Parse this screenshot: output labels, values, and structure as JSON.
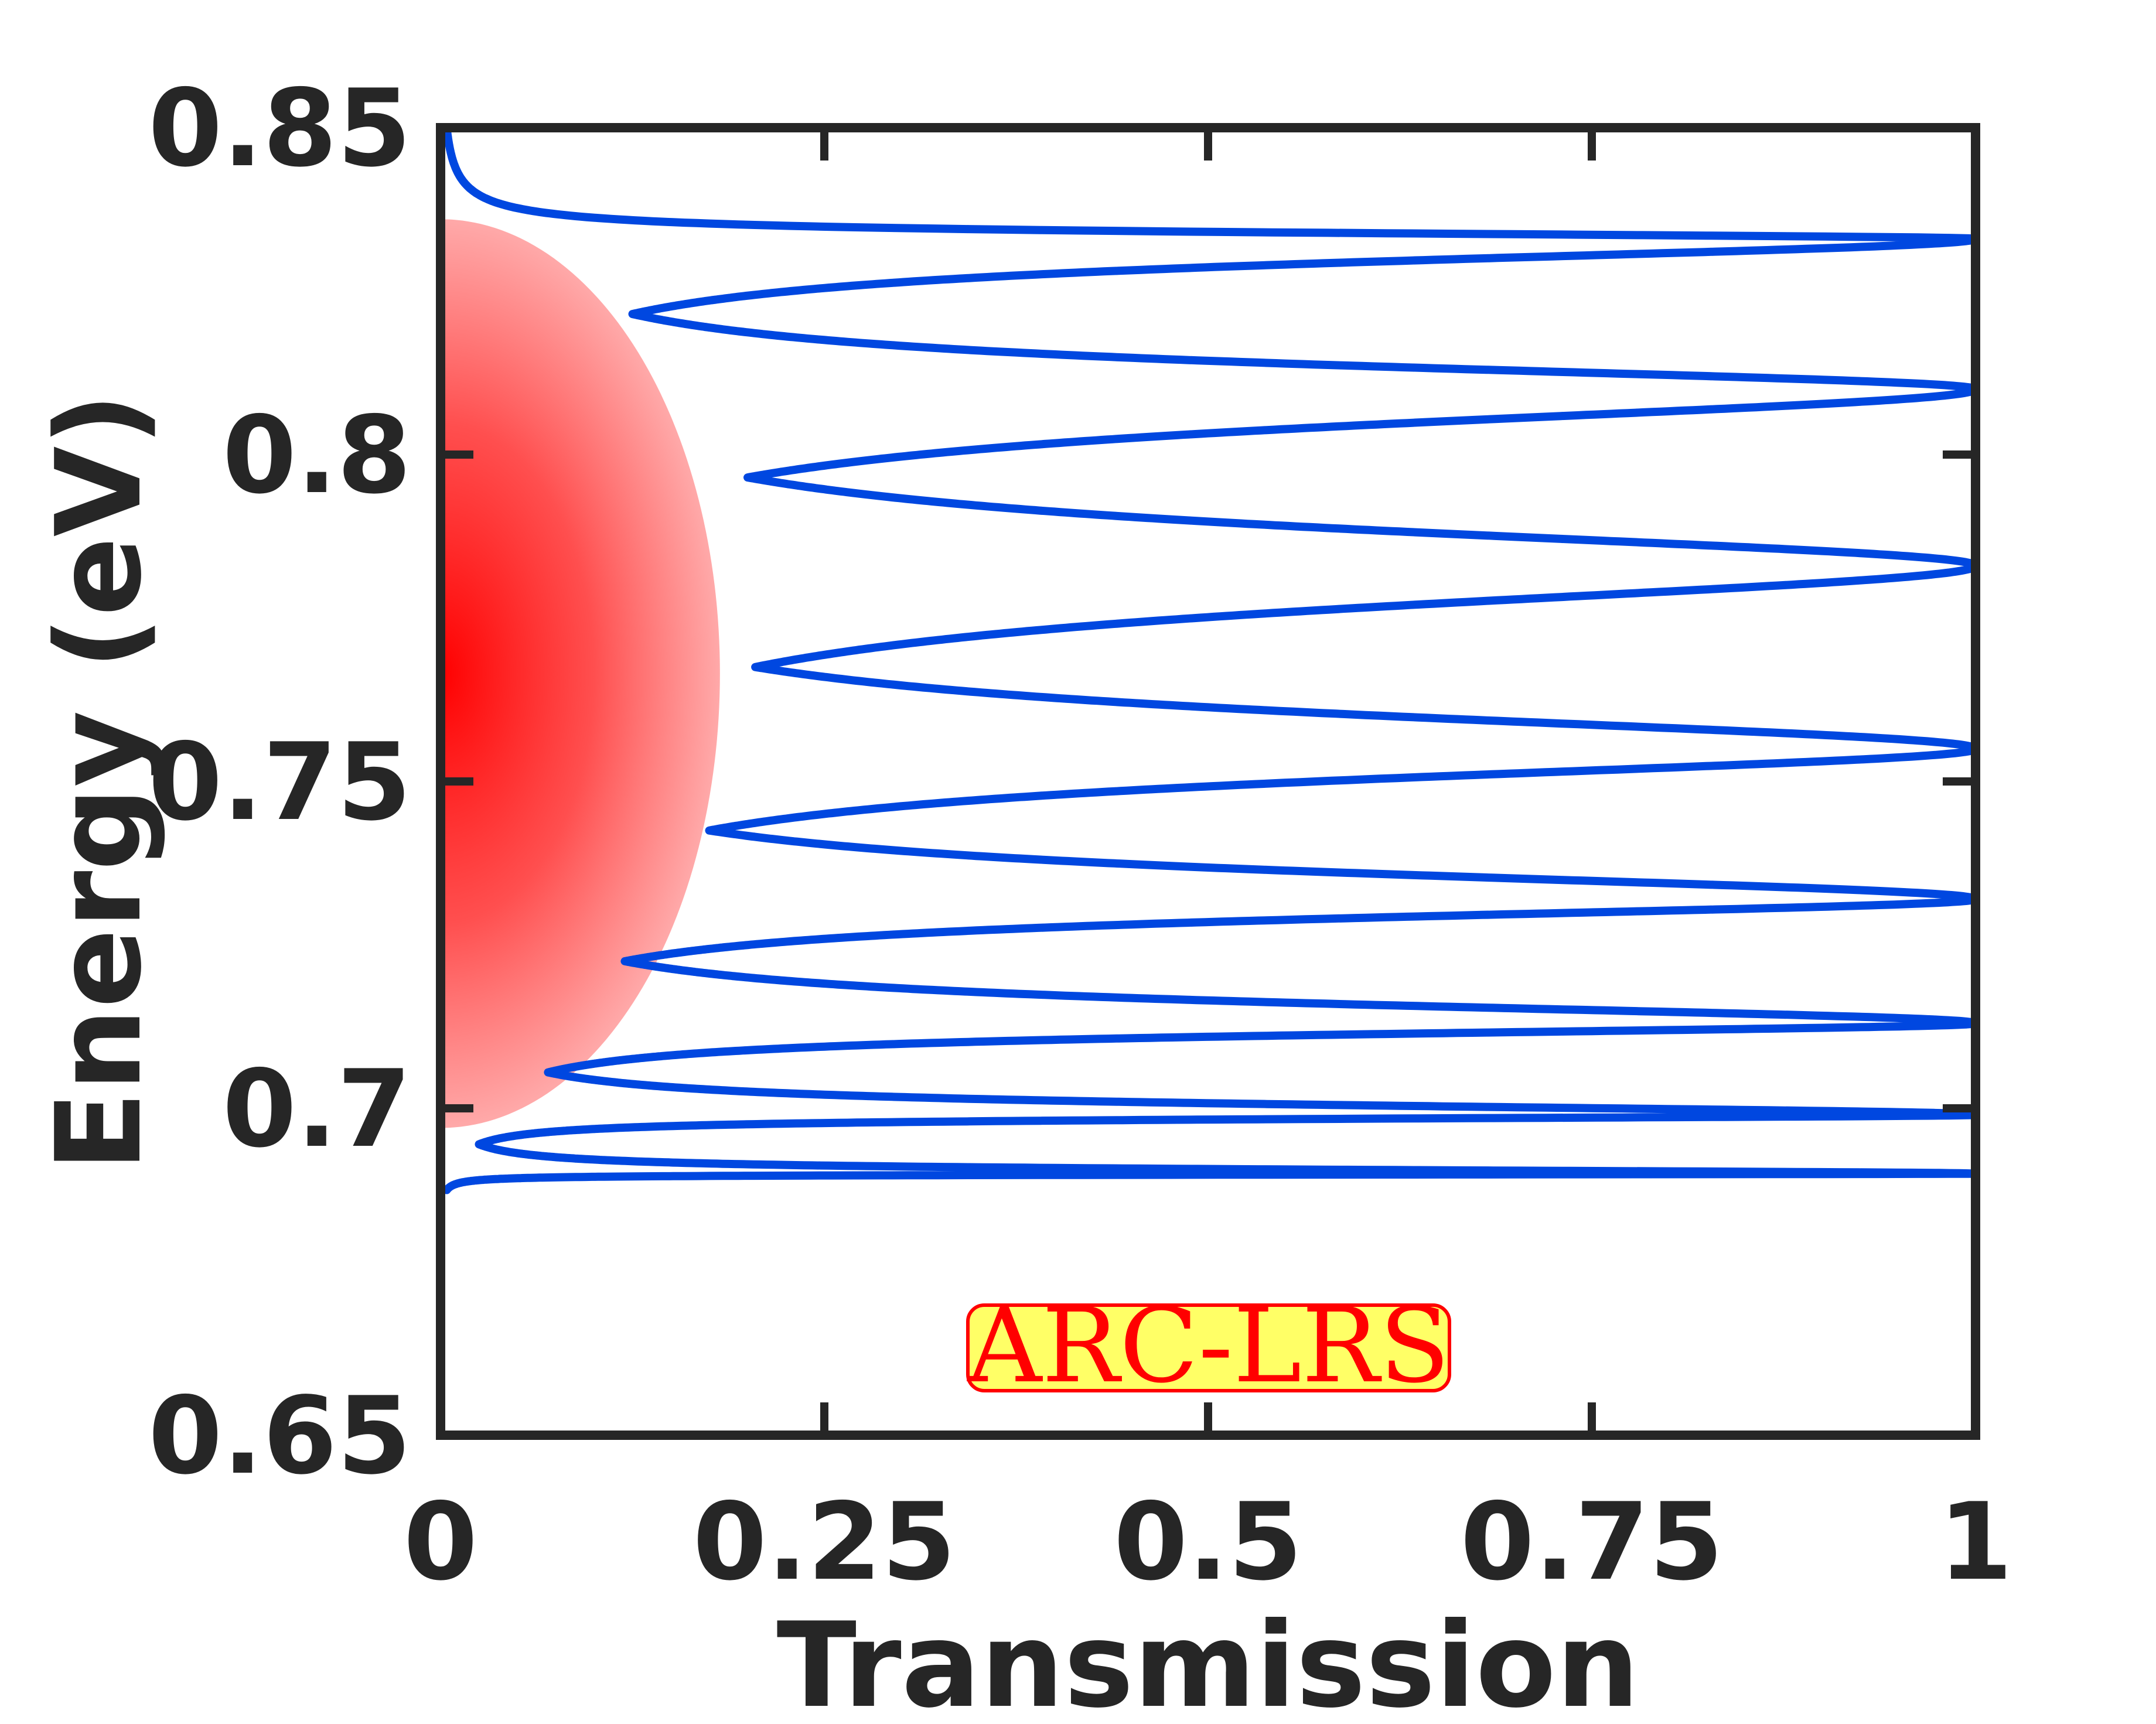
{
  "chart_data": {
    "type": "line",
    "title": "",
    "xlabel": "Transmission",
    "ylabel": "Energy (eV)",
    "xlim": [
      0,
      1
    ],
    "ylim": [
      0.65,
      0.85
    ],
    "xticks": [
      0,
      0.25,
      0.5,
      0.75,
      1
    ],
    "xtick_labels": [
      "0",
      "0.25",
      "0.5",
      "0.75",
      "1"
    ],
    "yticks": [
      0.65,
      0.7,
      0.75,
      0.8,
      0.85
    ],
    "ytick_labels": [
      "0.65",
      "0.7",
      "0.75",
      "0.8",
      "0.85"
    ],
    "grid": false,
    "legend": "none",
    "series": [
      {
        "color": "#0047e0",
        "resonances": [
          {
            "energy": 0.69,
            "transmission": 1.0
          },
          {
            "energy": 0.699,
            "transmission": 1.0
          },
          {
            "energy": 0.713,
            "transmission": 1.0
          },
          {
            "energy": 0.732,
            "transmission": 1.0
          },
          {
            "energy": 0.755,
            "transmission": 1.0
          },
          {
            "energy": 0.783,
            "transmission": 1.0
          },
          {
            "energy": 0.81,
            "transmission": 1.0
          },
          {
            "energy": 0.833,
            "transmission": 1.0
          }
        ],
        "minima": [
          {
            "energy": 0.6945,
            "transmission": 0.025
          },
          {
            "energy": 0.7055,
            "transmission": 0.07
          },
          {
            "energy": 0.7225,
            "transmission": 0.12
          },
          {
            "energy": 0.7425,
            "transmission": 0.175
          },
          {
            "energy": 0.7675,
            "transmission": 0.205
          },
          {
            "energy": 0.7965,
            "transmission": 0.2
          },
          {
            "energy": 0.8215,
            "transmission": 0.125
          }
        ],
        "edge_points": [
          {
            "energy": 0.6875,
            "transmission": 0.0
          },
          {
            "energy": 0.85,
            "transmission": 0.0
          }
        ]
      }
    ],
    "shaded_region": {
      "shape": "half-ellipse",
      "color": "#ff0000",
      "energy_center": 0.7665,
      "energy_range": [
        0.697,
        0.836
      ],
      "transmission_max": 0.182
    },
    "annotation": {
      "text": "ARC-LRS",
      "text_color": "#ff0000",
      "background": "#ffff66",
      "border": "#ff0000"
    },
    "colors": {
      "axes": "#262626",
      "curve": "#0047e0",
      "ellipse": "#ff0000"
    }
  }
}
